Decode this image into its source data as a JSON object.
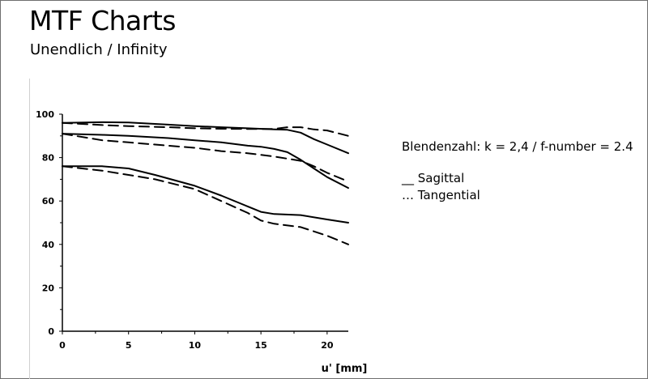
{
  "header": {
    "title": "MTF Charts",
    "subtitle": "Unendlich / Infinity"
  },
  "info": {
    "aperture": "Blendenzahl: k = 2,4 / f-number = 2.4",
    "legend_sagittal": "__ Sagittal",
    "legend_tangential": "… Tangential"
  },
  "chart_data": {
    "type": "line",
    "xlabel": "u' [mm]",
    "ylabel": "",
    "xlim": [
      0,
      21.6
    ],
    "ylim": [
      0,
      100
    ],
    "xticks": [
      0,
      5,
      10,
      15,
      20
    ],
    "yticks": [
      0,
      20,
      40,
      60,
      80,
      100
    ],
    "grid": false,
    "series": [
      {
        "name": "Sagittal",
        "style": "solid",
        "x": [
          0,
          3,
          5,
          8,
          10,
          12,
          14,
          16,
          17,
          18,
          19,
          20,
          21.6
        ],
        "y": [
          96,
          96.3,
          96.2,
          95.2,
          94.5,
          94,
          93.5,
          93,
          92.8,
          91.5,
          88.5,
          86,
          82
        ]
      },
      {
        "name": "Tangential",
        "style": "dashed",
        "x": [
          0,
          3,
          5,
          8,
          10,
          12,
          14,
          16,
          17,
          18,
          19,
          20,
          21.6
        ],
        "y": [
          96,
          95,
          94.5,
          94,
          93.5,
          93.3,
          93.2,
          93.2,
          94,
          94,
          93,
          92.5,
          90
        ]
      },
      {
        "name": "Sagittal",
        "style": "solid",
        "x": [
          0,
          3,
          5,
          8,
          10,
          12,
          14,
          15,
          16,
          17,
          18,
          19,
          20,
          21.6
        ],
        "y": [
          91,
          90.5,
          90,
          89,
          88,
          87,
          85.5,
          85,
          84,
          82.5,
          79,
          75,
          71,
          66
        ]
      },
      {
        "name": "Tangential",
        "style": "dashed",
        "x": [
          0,
          3,
          5,
          8,
          10,
          12,
          14,
          16,
          18,
          19,
          20,
          21.6
        ],
        "y": [
          91,
          88,
          87,
          85.5,
          84.5,
          83,
          82,
          80.5,
          78.5,
          76,
          73,
          69
        ]
      },
      {
        "name": "Sagittal",
        "style": "solid",
        "x": [
          0,
          3,
          5,
          7,
          10,
          12,
          14,
          15,
          16,
          18,
          20,
          21.6
        ],
        "y": [
          76,
          76,
          75,
          72,
          67,
          62.5,
          57.5,
          55,
          54,
          53.5,
          51.5,
          50
        ]
      },
      {
        "name": "Tangential",
        "style": "dashed",
        "x": [
          0,
          3,
          5,
          7,
          10,
          12,
          14,
          15,
          16,
          18,
          20,
          21.6
        ],
        "y": [
          76,
          74,
          72,
          70,
          65.5,
          60,
          54.5,
          51,
          49.5,
          48,
          44,
          40
        ]
      }
    ]
  }
}
